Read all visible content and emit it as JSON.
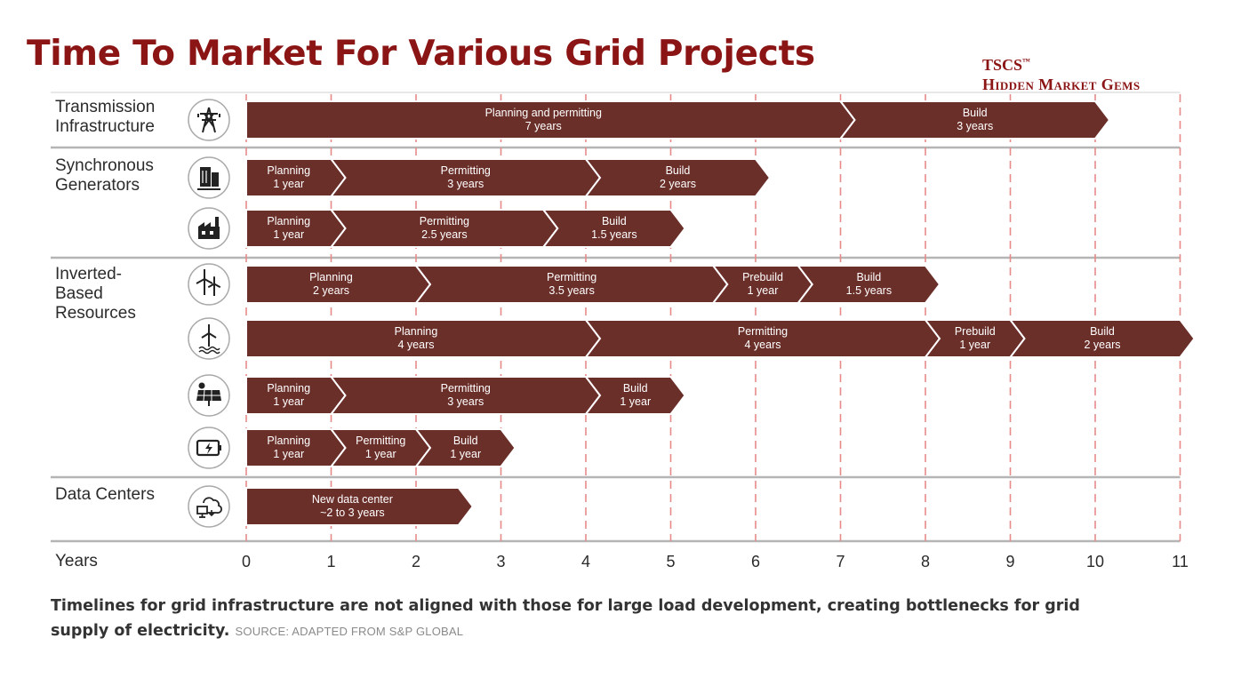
{
  "header": {
    "title": "Time To Market For Various Grid Projects",
    "brand_line1": "TSCS",
    "brand_tm": "™",
    "brand_line2": "Hidden Market Gems"
  },
  "footer": {
    "caption": "Timelines for grid infrastructure are not aligned with those for large load development, creating bottlenecks for grid supply of electricity.",
    "source": "SOURCE: ADAPTED FROM S&P GLOBAL"
  },
  "colors": {
    "title": "#8b1414",
    "bar": "#6b2f2a",
    "bar_edge": "#ffffff",
    "gridline": "#e88a8a",
    "separator": "#b5b5b5"
  },
  "chart_data": {
    "type": "bar",
    "orientation": "horizontal-stacked-timeline",
    "xlabel": "Years",
    "xlim": [
      0,
      11
    ],
    "xticks": [
      0,
      1,
      2,
      3,
      4,
      5,
      6,
      7,
      8,
      9,
      10,
      11
    ],
    "gridlines": "vertical dashed at each year",
    "groups": [
      {
        "name": "Transmission Infrastructure",
        "rows": [
          {
            "icon": "transmission-tower-icon",
            "segments": [
              {
                "phase": "Planning and permitting",
                "duration": "7 years",
                "start": 0,
                "end": 7
              },
              {
                "phase": "Build",
                "duration": "3 years",
                "start": 7,
                "end": 10
              }
            ]
          }
        ]
      },
      {
        "name": "Synchronous Generators",
        "rows": [
          {
            "icon": "power-plant-icon",
            "segments": [
              {
                "phase": "Planning",
                "duration": "1 year",
                "start": 0,
                "end": 1
              },
              {
                "phase": "Permitting",
                "duration": "3 years",
                "start": 1,
                "end": 4
              },
              {
                "phase": "Build",
                "duration": "2 years",
                "start": 4,
                "end": 6
              }
            ]
          },
          {
            "icon": "factory-icon",
            "segments": [
              {
                "phase": "Planning",
                "duration": "1 year",
                "start": 0,
                "end": 1
              },
              {
                "phase": "Permitting",
                "duration": "2.5 years",
                "start": 1,
                "end": 3.5
              },
              {
                "phase": "Build",
                "duration": "1.5 years",
                "start": 3.5,
                "end": 5
              }
            ]
          }
        ]
      },
      {
        "name": "Inverted-Based Resources",
        "rows": [
          {
            "icon": "wind-turbines-icon",
            "segments": [
              {
                "phase": "Planning",
                "duration": "2 years",
                "start": 0,
                "end": 2
              },
              {
                "phase": "Permitting",
                "duration": "3.5 years",
                "start": 2,
                "end": 5.5
              },
              {
                "phase": "Prebuild",
                "duration": "1 year",
                "start": 5.5,
                "end": 6.5
              },
              {
                "phase": "Build",
                "duration": "1.5 years",
                "start": 6.5,
                "end": 8
              }
            ]
          },
          {
            "icon": "offshore-wind-icon",
            "segments": [
              {
                "phase": "Planning",
                "duration": "4 years",
                "start": 0,
                "end": 4
              },
              {
                "phase": "Permitting",
                "duration": "4 years",
                "start": 4,
                "end": 8
              },
              {
                "phase": "Prebuild",
                "duration": "1 year",
                "start": 8,
                "end": 9
              },
              {
                "phase": "Build",
                "duration": "2 years",
                "start": 9,
                "end": 11
              }
            ]
          },
          {
            "icon": "solar-panel-icon",
            "segments": [
              {
                "phase": "Planning",
                "duration": "1 year",
                "start": 0,
                "end": 1
              },
              {
                "phase": "Permitting",
                "duration": "3 years",
                "start": 1,
                "end": 4
              },
              {
                "phase": "Build",
                "duration": "1 year",
                "start": 4,
                "end": 5
              }
            ]
          },
          {
            "icon": "battery-storage-icon",
            "segments": [
              {
                "phase": "Planning",
                "duration": "1 year",
                "start": 0,
                "end": 1
              },
              {
                "phase": "Permitting",
                "duration": "1 year",
                "start": 1,
                "end": 2
              },
              {
                "phase": "Build",
                "duration": "1 year",
                "start": 2,
                "end": 3
              }
            ]
          }
        ]
      },
      {
        "name": "Data Centers",
        "rows": [
          {
            "icon": "data-center-cloud-icon",
            "segments": [
              {
                "phase": "New data center",
                "duration": "~2 to 3 years",
                "start": 0,
                "end": 2.5
              }
            ]
          }
        ]
      }
    ]
  }
}
